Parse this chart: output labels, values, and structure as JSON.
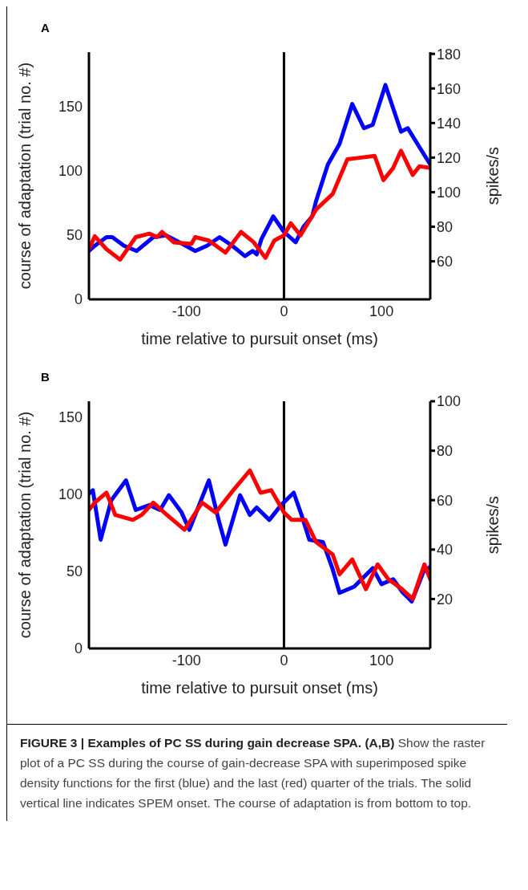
{
  "chart_data": [
    {
      "type": "line",
      "title": "A",
      "xlabel": "time relative to pursuit onset (ms)",
      "ylabel": "course of adaptation (trial no. #)",
      "y2label": "spikes/s",
      "xlim": [
        -200,
        150
      ],
      "xticks": [
        -100,
        0,
        100
      ],
      "ylim": [
        0,
        192
      ],
      "yticks": [
        0,
        50,
        100,
        150
      ],
      "y2lim": [
        38,
        181
      ],
      "y2ticks": [
        60,
        80,
        100,
        120,
        140,
        160,
        180
      ],
      "legend": false,
      "marker": "none",
      "line_style": "solid",
      "ref_lines": [
        {
          "axis": "x",
          "value": 0,
          "label": null,
          "color": "#000000"
        }
      ],
      "series": [
        {
          "color": "#0000ff",
          "axis": "y2",
          "x": [
            -200,
            -194,
            -182,
            -176,
            -164,
            -151,
            -134,
            -121,
            -104,
            -91,
            -79,
            -66,
            -53,
            -40,
            -32,
            -28,
            -23,
            -11,
            0,
            12,
            20,
            29,
            33,
            45,
            57,
            70,
            82,
            91,
            104,
            120,
            127,
            139,
            150
          ],
          "values": [
            66,
            69,
            74,
            74,
            69,
            66,
            74,
            75,
            70,
            66,
            69,
            74,
            69,
            63,
            66,
            64,
            73,
            86,
            77,
            71,
            80,
            86,
            95,
            116,
            128,
            151,
            137,
            139,
            162,
            135,
            137,
            126,
            116
          ]
        },
        {
          "color": "#ff0000",
          "axis": "y2",
          "x": [
            -200,
            -194,
            -182,
            -168,
            -152,
            -138,
            -130,
            -125,
            -113,
            -95,
            -91,
            -77,
            -60,
            -44,
            -31,
            -19,
            -10,
            0,
            7,
            17,
            33,
            50,
            65,
            79,
            93,
            102,
            112,
            120,
            132,
            139,
            150
          ],
          "values": [
            67,
            74.5,
            67,
            61,
            74,
            76,
            74,
            77,
            71,
            70,
            74,
            72,
            65,
            77,
            71,
            62,
            72,
            75,
            82,
            75,
            90,
            99,
            119,
            120,
            121,
            107,
            114,
            124,
            110,
            115,
            114
          ]
        }
      ]
    },
    {
      "type": "line",
      "title": "B",
      "xlabel": "time relative to pursuit onset (ms)",
      "ylabel": "course of adaptation (trial no. #)",
      "y2label": "spikes/s",
      "xlim": [
        -200,
        150
      ],
      "xticks": [
        -100,
        0,
        100
      ],
      "ylim": [
        0,
        160
      ],
      "yticks": [
        0,
        50,
        100,
        150
      ],
      "y2lim": [
        0,
        100
      ],
      "y2ticks": [
        20,
        40,
        60,
        80,
        100
      ],
      "legend": false,
      "marker": "none",
      "line_style": "solid",
      "ref_lines": [
        {
          "axis": "x",
          "value": 0,
          "label": null,
          "color": "#000000"
        }
      ],
      "annotations": [
        "FIGURE 3 | Examples of PC SS during gain decrease SPA. (A,B)",
        "Show the raster plot of a PC SS during the course of gain-decrease SPA with superimposed spike density functions for the first (blue) and the last (red) quarter of the trials. The solid vertical line indicates SPEM onset. The course of adaptation is from bottom to top."
      ],
      "series": [
        {
          "color": "#0000ff",
          "axis": "y2",
          "x": [
            -200,
            -196,
            -188,
            -177,
            -162,
            -152,
            -138,
            -127,
            -118,
            -105,
            -97,
            -77,
            -67,
            -60,
            -45,
            -35,
            -28,
            -15,
            -3,
            10,
            18,
            26,
            40,
            50,
            57,
            72,
            91,
            100,
            112,
            121,
            131,
            143,
            150
          ],
          "values": [
            62.6,
            64,
            44,
            60,
            68,
            56,
            58,
            56,
            62,
            55,
            48,
            68,
            52,
            42,
            62,
            54,
            57,
            52,
            58,
            63,
            54,
            44,
            43,
            32,
            22.5,
            25,
            32.5,
            26,
            28,
            23,
            19,
            31,
            33
          ]
        },
        {
          "color": "#ff0000",
          "axis": "y2",
          "x": [
            -200,
            -194,
            -182,
            -173,
            -155,
            -146,
            -134,
            -120,
            -102,
            -84,
            -70,
            -52,
            -35,
            -24,
            -13,
            0,
            8,
            22,
            33,
            50,
            57,
            70,
            84,
            96,
            107,
            121,
            132,
            144,
            150
          ],
          "values": [
            56,
            59,
            63,
            54,
            52,
            54,
            59,
            54,
            48,
            59,
            55,
            64,
            72,
            63,
            64,
            55,
            52,
            52,
            43,
            38,
            30,
            36,
            24,
            34,
            28,
            24,
            20,
            34,
            28
          ]
        }
      ]
    }
  ]
}
